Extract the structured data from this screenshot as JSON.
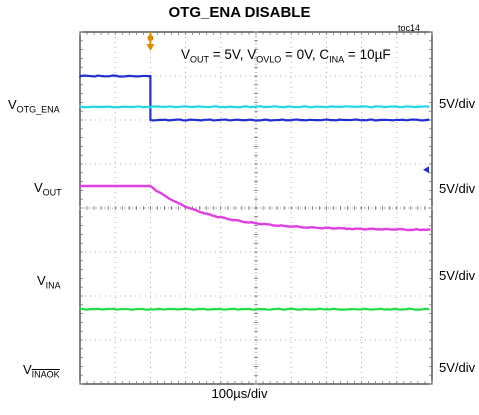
{
  "chart_data": {
    "type": "line",
    "title": "OTG_ENA DISABLE",
    "figure_id": "toc14",
    "conditions": {
      "vout": "5V",
      "vovlo": "0V",
      "cina": "10µF"
    },
    "xlabel": "100µs/div",
    "x_divisions": 10,
    "y_divisions": 8,
    "grid": true,
    "trigger_div": 2.0,
    "series": [
      {
        "name": "V_OTG_ENA",
        "scale": "5V/div",
        "color": "#1f2fd0",
        "before_level": 5,
        "after_level": 0,
        "transition_div": 2.0,
        "shape": "step"
      },
      {
        "name": "V_OUT",
        "scale": "5V/div",
        "color": "#22d6e6",
        "before_level": 5,
        "after_level": 5,
        "transition_div": 2.0,
        "shape": "flat"
      },
      {
        "name": "V_INA",
        "scale": "5V/div",
        "color": "#e040e0",
        "before_level": 5,
        "after_level": 0,
        "transition_div": 2.0,
        "shape": "decay",
        "tau_divs": 1.6
      },
      {
        "name": "V_INAOK",
        "scale": "5V/div",
        "color": "#22dd44",
        "before_level": 0,
        "after_level": 0,
        "transition_div": 2.0,
        "shape": "flat"
      }
    ]
  }
}
